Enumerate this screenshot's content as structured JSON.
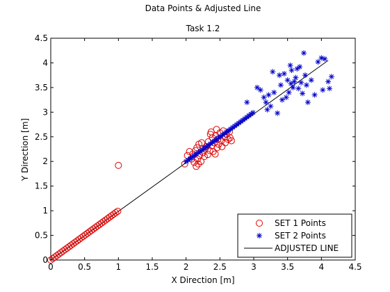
{
  "chart_data": {
    "type": "scatter",
    "title": "Data Points & Adjusted Line",
    "subtitle": "Task 1.2",
    "xlabel": "X Direction [m]",
    "ylabel": "Y Direction [m]",
    "xlim": [
      0,
      4.5
    ],
    "ylim": [
      0,
      4.5
    ],
    "xticks": [
      "0",
      "0.5",
      "1",
      "1.5",
      "2",
      "2.5",
      "3",
      "3.5",
      "4",
      "4.5"
    ],
    "yticks": [
      "0",
      "0.5",
      "1",
      "1.5",
      "2",
      "2.5",
      "3",
      "3.5",
      "4",
      "4.5"
    ],
    "grid": false,
    "legend_position": "bottom-right",
    "series": [
      {
        "name": "SET 1 Points",
        "marker": "circle",
        "color": "#e00000",
        "points": [
          [
            0.0,
            0.0
          ],
          [
            0.03,
            0.03
          ],
          [
            0.06,
            0.06
          ],
          [
            0.09,
            0.09
          ],
          [
            0.12,
            0.12
          ],
          [
            0.15,
            0.15
          ],
          [
            0.18,
            0.18
          ],
          [
            0.21,
            0.21
          ],
          [
            0.24,
            0.24
          ],
          [
            0.27,
            0.27
          ],
          [
            0.3,
            0.3
          ],
          [
            0.33,
            0.33
          ],
          [
            0.36,
            0.36
          ],
          [
            0.39,
            0.39
          ],
          [
            0.42,
            0.42
          ],
          [
            0.45,
            0.45
          ],
          [
            0.48,
            0.48
          ],
          [
            0.51,
            0.51
          ],
          [
            0.54,
            0.54
          ],
          [
            0.57,
            0.57
          ],
          [
            0.6,
            0.6
          ],
          [
            0.63,
            0.63
          ],
          [
            0.66,
            0.66
          ],
          [
            0.69,
            0.69
          ],
          [
            0.72,
            0.72
          ],
          [
            0.75,
            0.75
          ],
          [
            0.78,
            0.78
          ],
          [
            0.81,
            0.81
          ],
          [
            0.84,
            0.84
          ],
          [
            0.87,
            0.87
          ],
          [
            0.9,
            0.9
          ],
          [
            0.93,
            0.93
          ],
          [
            0.96,
            0.96
          ],
          [
            0.99,
            0.99
          ],
          [
            1.0,
            1.92
          ],
          [
            1.98,
            1.95
          ],
          [
            2.02,
            2.12
          ],
          [
            2.05,
            2.2
          ],
          [
            2.08,
            2.05
          ],
          [
            2.1,
            2.15
          ],
          [
            2.12,
            1.98
          ],
          [
            2.14,
            2.22
          ],
          [
            2.15,
            1.9
          ],
          [
            2.16,
            2.28
          ],
          [
            2.17,
            2.05
          ],
          [
            2.18,
            1.95
          ],
          [
            2.19,
            2.35
          ],
          [
            2.2,
            2.12
          ],
          [
            2.22,
            2.0
          ],
          [
            2.23,
            2.38
          ],
          [
            2.25,
            2.18
          ],
          [
            2.27,
            2.1
          ],
          [
            2.28,
            2.25
          ],
          [
            2.3,
            2.3
          ],
          [
            2.32,
            2.14
          ],
          [
            2.33,
            2.4
          ],
          [
            2.35,
            2.22
          ],
          [
            2.36,
            2.55
          ],
          [
            2.37,
            2.6
          ],
          [
            2.38,
            2.32
          ],
          [
            2.39,
            2.48
          ],
          [
            2.4,
            2.2
          ],
          [
            2.42,
            2.38
          ],
          [
            2.43,
            2.15
          ],
          [
            2.44,
            2.52
          ],
          [
            2.45,
            2.65
          ],
          [
            2.46,
            2.28
          ],
          [
            2.47,
            2.45
          ],
          [
            2.48,
            2.35
          ],
          [
            2.5,
            2.58
          ],
          [
            2.52,
            2.42
          ],
          [
            2.53,
            2.3
          ],
          [
            2.55,
            2.62
          ],
          [
            2.57,
            2.5
          ],
          [
            2.58,
            2.38
          ],
          [
            2.6,
            2.55
          ],
          [
            2.62,
            2.45
          ],
          [
            2.64,
            2.6
          ],
          [
            2.65,
            2.48
          ],
          [
            2.67,
            2.42
          ]
        ]
      },
      {
        "name": "SET 2 Points",
        "marker": "star",
        "color": "#0000cc",
        "points": [
          [
            2.0,
            2.0
          ],
          [
            2.03,
            2.03
          ],
          [
            2.06,
            2.06
          ],
          [
            2.09,
            2.09
          ],
          [
            2.12,
            2.12
          ],
          [
            2.15,
            2.15
          ],
          [
            2.18,
            2.18
          ],
          [
            2.21,
            2.21
          ],
          [
            2.24,
            2.24
          ],
          [
            2.27,
            2.27
          ],
          [
            2.3,
            2.3
          ],
          [
            2.33,
            2.33
          ],
          [
            2.36,
            2.36
          ],
          [
            2.39,
            2.39
          ],
          [
            2.42,
            2.42
          ],
          [
            2.45,
            2.45
          ],
          [
            2.48,
            2.48
          ],
          [
            2.51,
            2.51
          ],
          [
            2.54,
            2.54
          ],
          [
            2.57,
            2.57
          ],
          [
            2.6,
            2.6
          ],
          [
            2.63,
            2.63
          ],
          [
            2.66,
            2.66
          ],
          [
            2.69,
            2.69
          ],
          [
            2.72,
            2.72
          ],
          [
            2.75,
            2.75
          ],
          [
            2.78,
            2.78
          ],
          [
            2.81,
            2.81
          ],
          [
            2.84,
            2.84
          ],
          [
            2.87,
            2.87
          ],
          [
            2.9,
            2.9
          ],
          [
            2.93,
            2.93
          ],
          [
            2.96,
            2.96
          ],
          [
            2.99,
            2.99
          ],
          [
            2.9,
            3.2
          ],
          [
            3.05,
            3.5
          ],
          [
            3.1,
            3.45
          ],
          [
            3.15,
            3.3
          ],
          [
            3.18,
            3.2
          ],
          [
            3.2,
            3.05
          ],
          [
            3.22,
            3.35
          ],
          [
            3.25,
            3.12
          ],
          [
            3.28,
            3.82
          ],
          [
            3.3,
            3.4
          ],
          [
            3.35,
            2.98
          ],
          [
            3.38,
            3.75
          ],
          [
            3.4,
            3.55
          ],
          [
            3.42,
            3.25
          ],
          [
            3.45,
            3.78
          ],
          [
            3.48,
            3.3
          ],
          [
            3.5,
            3.65
          ],
          [
            3.52,
            3.4
          ],
          [
            3.54,
            3.95
          ],
          [
            3.55,
            3.58
          ],
          [
            3.56,
            3.85
          ],
          [
            3.58,
            3.5
          ],
          [
            3.6,
            3.62
          ],
          [
            3.62,
            3.7
          ],
          [
            3.64,
            3.88
          ],
          [
            3.66,
            3.48
          ],
          [
            3.68,
            3.92
          ],
          [
            3.7,
            3.6
          ],
          [
            3.72,
            3.38
          ],
          [
            3.74,
            4.2
          ],
          [
            3.76,
            3.75
          ],
          [
            3.78,
            3.55
          ],
          [
            3.8,
            3.2
          ],
          [
            3.85,
            3.65
          ],
          [
            3.9,
            3.35
          ],
          [
            3.95,
            4.02
          ],
          [
            4.0,
            4.1
          ],
          [
            4.02,
            3.45
          ],
          [
            4.05,
            4.08
          ],
          [
            4.1,
            3.62
          ],
          [
            4.12,
            3.48
          ],
          [
            4.15,
            3.72
          ]
        ]
      },
      {
        "name": "ADJUSTED LINE",
        "marker": "line",
        "color": "#000000",
        "points": [
          [
            0.0,
            0.0
          ],
          [
            4.1,
            4.05
          ]
        ]
      }
    ]
  }
}
